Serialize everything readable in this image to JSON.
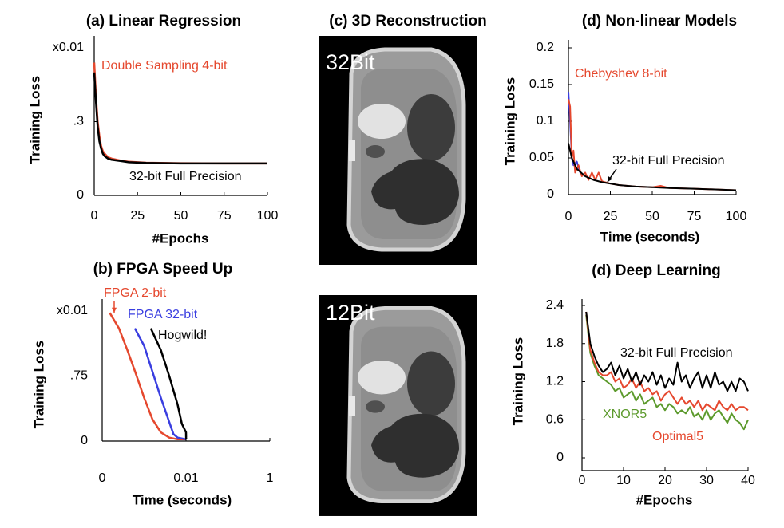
{
  "chart_data": [
    {
      "type": "line",
      "title": "(a) Linear Regression",
      "xlabel": "#Epochs",
      "ylabel": "Training Loss",
      "y_multiplier": "x0.01",
      "x": [
        0,
        1,
        2,
        3,
        4,
        5,
        6,
        8,
        10,
        15,
        20,
        30,
        50,
        75,
        100
      ],
      "series": [
        {
          "name": "Double Sampling 4-bit",
          "color": "#e5482e",
          "values": [
            0.54,
            0.4,
            0.3,
            0.24,
            0.2,
            0.18,
            0.17,
            0.155,
            0.15,
            0.142,
            0.137,
            0.133,
            0.131,
            0.13,
            0.13
          ]
        },
        {
          "name": "32-bit Full Precision",
          "color": "#000000",
          "values": [
            0.5,
            0.38,
            0.28,
            0.22,
            0.19,
            0.17,
            0.16,
            0.15,
            0.145,
            0.14,
            0.135,
            0.132,
            0.13,
            0.13,
            0.13
          ]
        }
      ],
      "xlim": [
        0,
        100
      ],
      "xticks": [
        0,
        25,
        50,
        75,
        100
      ],
      "ylim": [
        0,
        0.6
      ],
      "yticks": [
        0,
        {
          "value": 0.3,
          "label": ".3"
        }
      ]
    },
    {
      "type": "line",
      "title": "(b) FPGA Speed Up",
      "xlabel": "Time (seconds)",
      "ylabel": "Training Loss",
      "y_multiplier": "x0.01",
      "series": [
        {
          "name": "FPGA 2-bit",
          "color": "#e5482e",
          "x": [
            0.0009,
            0.002,
            0.003,
            0.004,
            0.005,
            0.006,
            0.007,
            0.008,
            0.009,
            0.01,
            0.012
          ],
          "values": [
            1.48,
            1.3,
            1.05,
            0.78,
            0.5,
            0.25,
            0.1,
            0.04,
            0.02,
            0.02,
            0.02
          ]
        },
        {
          "name": "FPGA 32-bit",
          "color": "#3a3ee0",
          "x": [
            0.0039,
            0.005,
            0.006,
            0.007,
            0.008,
            0.0085,
            0.009,
            0.01,
            0.013
          ],
          "values": [
            1.3,
            1.1,
            0.8,
            0.5,
            0.22,
            0.08,
            0.04,
            0.02,
            0.02
          ]
        },
        {
          "name": "Hogwild!",
          "color": "#000000",
          "x": [
            0.0058,
            0.007,
            0.008,
            0.009,
            0.0095,
            0.01,
            0.011,
            0.012,
            0.0147
          ],
          "values": [
            1.3,
            1.05,
            0.75,
            0.42,
            0.2,
            0.1,
            0.04,
            0.02,
            0.02
          ]
        }
      ],
      "xlim": [
        0,
        1
      ],
      "xticks": [
        0,
        0.01,
        1
      ],
      "ylim": [
        0,
        1.5
      ],
      "yticks": [
        0,
        {
          "value": 0.75,
          "label": ".75"
        }
      ]
    },
    {
      "type": "line",
      "title": "(d) Non-linear Models",
      "xlabel": "Time (seconds)",
      "ylabel": "Training Loss",
      "series": [
        {
          "color": "#3a3ee0",
          "x": [
            0,
            1,
            2,
            3,
            5,
            7
          ],
          "values": [
            0.14,
            0.1,
            0.05,
            0.04,
            0.045,
            0.03
          ]
        },
        {
          "name": "Chebyshev 8-bit",
          "color": "#e5482e",
          "x": [
            0,
            1,
            2,
            3,
            4,
            6,
            8,
            10,
            12,
            14,
            16,
            18,
            20,
            25,
            30,
            40,
            50,
            55,
            60,
            75,
            100
          ],
          "values": [
            0.13,
            0.12,
            0.05,
            0.06,
            0.03,
            0.04,
            0.025,
            0.03,
            0.02,
            0.03,
            0.02,
            0.03,
            0.018,
            0.015,
            0.013,
            0.011,
            0.01,
            0.012,
            0.009,
            0.008,
            0.006
          ]
        },
        {
          "name": "32-bit Full Precision",
          "color": "#000000",
          "x": [
            0,
            2,
            5,
            10,
            15,
            20,
            30,
            40,
            50,
            60,
            75,
            100
          ],
          "values": [
            0.07,
            0.05,
            0.035,
            0.025,
            0.02,
            0.017,
            0.013,
            0.011,
            0.01,
            0.009,
            0.008,
            0.006
          ]
        }
      ],
      "xlim": [
        0,
        100
      ],
      "xticks": [
        0,
        25,
        50,
        75,
        100
      ],
      "ylim": [
        0,
        0.2
      ],
      "yticks": [
        0,
        0.05,
        0.1,
        0.15,
        0.2
      ]
    },
    {
      "type": "line",
      "title": "(d) Deep Learning",
      "xlabel": "#Epochs",
      "ylabel": "Training Loss",
      "x": [
        1,
        2,
        3,
        4,
        5,
        6,
        7,
        8,
        9,
        10,
        11,
        12,
        13,
        14,
        15,
        16,
        17,
        18,
        19,
        20,
        21,
        22,
        23,
        24,
        25,
        26,
        27,
        28,
        29,
        30,
        31,
        32,
        33,
        34,
        35,
        36,
        37,
        38,
        39,
        40
      ],
      "series": [
        {
          "name": "XNOR5",
          "color": "#5c9a2c",
          "values": [
            2.25,
            1.65,
            1.45,
            1.3,
            1.25,
            1.2,
            1.15,
            1.05,
            1.1,
            0.95,
            1.0,
            1.05,
            0.9,
            1.0,
            0.85,
            0.9,
            0.95,
            0.8,
            0.85,
            0.75,
            0.85,
            0.8,
            0.7,
            0.75,
            0.7,
            0.8,
            0.65,
            0.7,
            0.6,
            0.75,
            0.6,
            0.7,
            0.75,
            0.65,
            0.55,
            0.7,
            0.6,
            0.55,
            0.45,
            0.6
          ]
        },
        {
          "name": "Optimal5",
          "color": "#e5482e",
          "values": [
            2.3,
            1.7,
            1.5,
            1.35,
            1.3,
            1.3,
            1.35,
            1.2,
            1.25,
            1.1,
            1.15,
            1.25,
            1.1,
            1.2,
            1.05,
            1.1,
            1.0,
            1.05,
            0.9,
            1.0,
            1.05,
            0.95,
            0.85,
            0.95,
            0.85,
            0.9,
            0.8,
            0.9,
            0.75,
            0.85,
            0.8,
            0.75,
            0.9,
            0.8,
            0.75,
            0.85,
            0.75,
            0.8,
            0.8,
            0.75
          ]
        },
        {
          "name": "32-bit Full Precision",
          "color": "#000000",
          "values": [
            2.3,
            1.8,
            1.6,
            1.45,
            1.35,
            1.4,
            1.5,
            1.3,
            1.45,
            1.25,
            1.4,
            1.2,
            1.35,
            1.15,
            1.3,
            1.2,
            1.35,
            1.15,
            1.3,
            1.1,
            1.25,
            1.15,
            1.5,
            1.2,
            1.3,
            1.1,
            1.25,
            1.35,
            1.1,
            1.3,
            1.1,
            1.35,
            1.15,
            1.2,
            1.05,
            1.2,
            1.05,
            1.25,
            1.2,
            1.05
          ]
        }
      ],
      "xlim": [
        0,
        40
      ],
      "xticks": [
        0,
        10,
        20,
        30,
        40
      ],
      "ylim": [
        0,
        2.4
      ],
      "yticks": [
        0,
        0.6,
        1.2,
        1.8,
        2.4
      ]
    }
  ],
  "images": {
    "title": "(c) 3D Reconstruction",
    "panels": [
      {
        "label": "32Bit"
      },
      {
        "label": "12Bit"
      }
    ]
  }
}
